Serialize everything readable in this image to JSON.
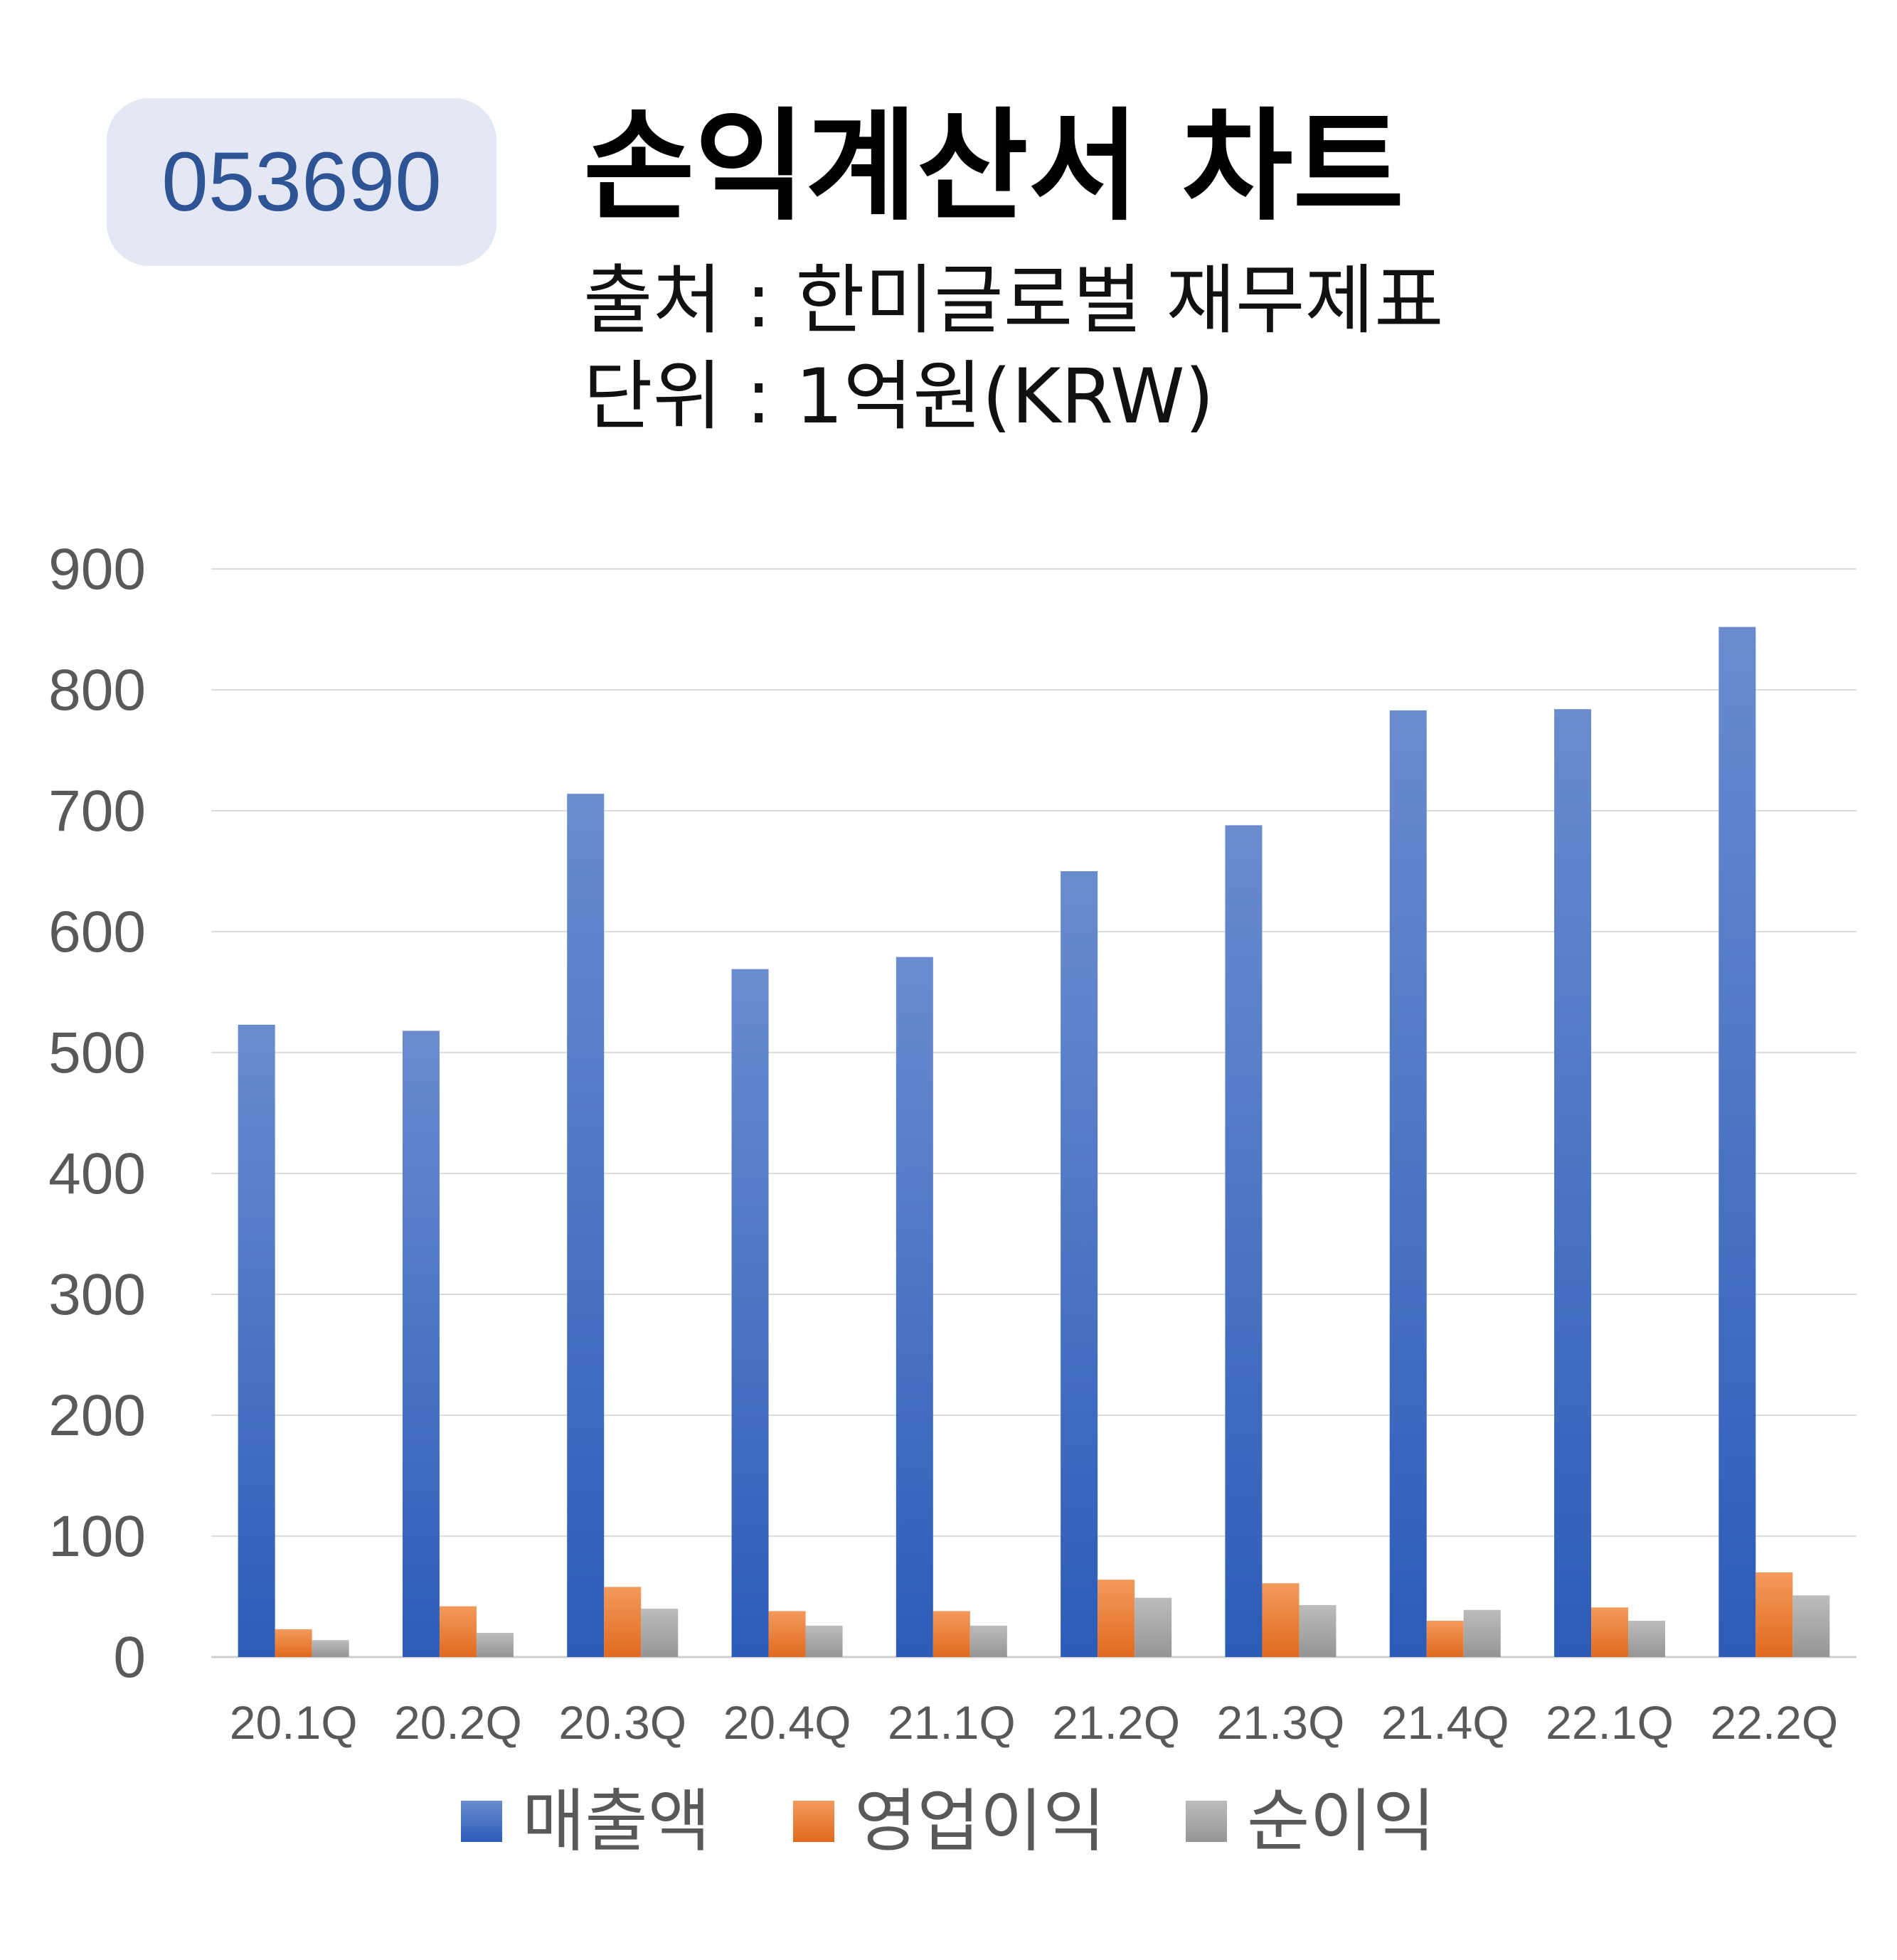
{
  "header": {
    "code": "053690",
    "title": "손익계산서 차트",
    "source": "출처 : 한미글로벌 재무제표",
    "unit": "단위 : 1억원(KRW)"
  },
  "colors": {
    "revenue": "#4472c4",
    "operating_income": "#ed7d31",
    "net_income": "#a5a5a5"
  },
  "chart_data": {
    "type": "bar",
    "title": "",
    "xlabel": "",
    "ylabel": "",
    "ylim": [
      0,
      900
    ],
    "yticks": [
      0,
      100,
      200,
      300,
      400,
      500,
      600,
      700,
      800,
      900
    ],
    "grid": true,
    "legend_position": "bottom",
    "categories": [
      "20.1Q",
      "20.2Q",
      "20.3Q",
      "20.4Q",
      "21.1Q",
      "21.2Q",
      "21.3Q",
      "21.4Q",
      "22.1Q",
      "22.2Q"
    ],
    "series": [
      {
        "name": "매출액",
        "values": [
          523,
          518,
          714,
          569,
          579,
          650,
          688,
          783,
          784,
          852
        ]
      },
      {
        "name": "영업이익",
        "values": [
          23,
          42,
          58,
          38,
          38,
          64,
          61,
          30,
          41,
          70
        ]
      },
      {
        "name": "순이익",
        "values": [
          14,
          20,
          40,
          26,
          26,
          49,
          43,
          39,
          30,
          51
        ]
      }
    ]
  }
}
